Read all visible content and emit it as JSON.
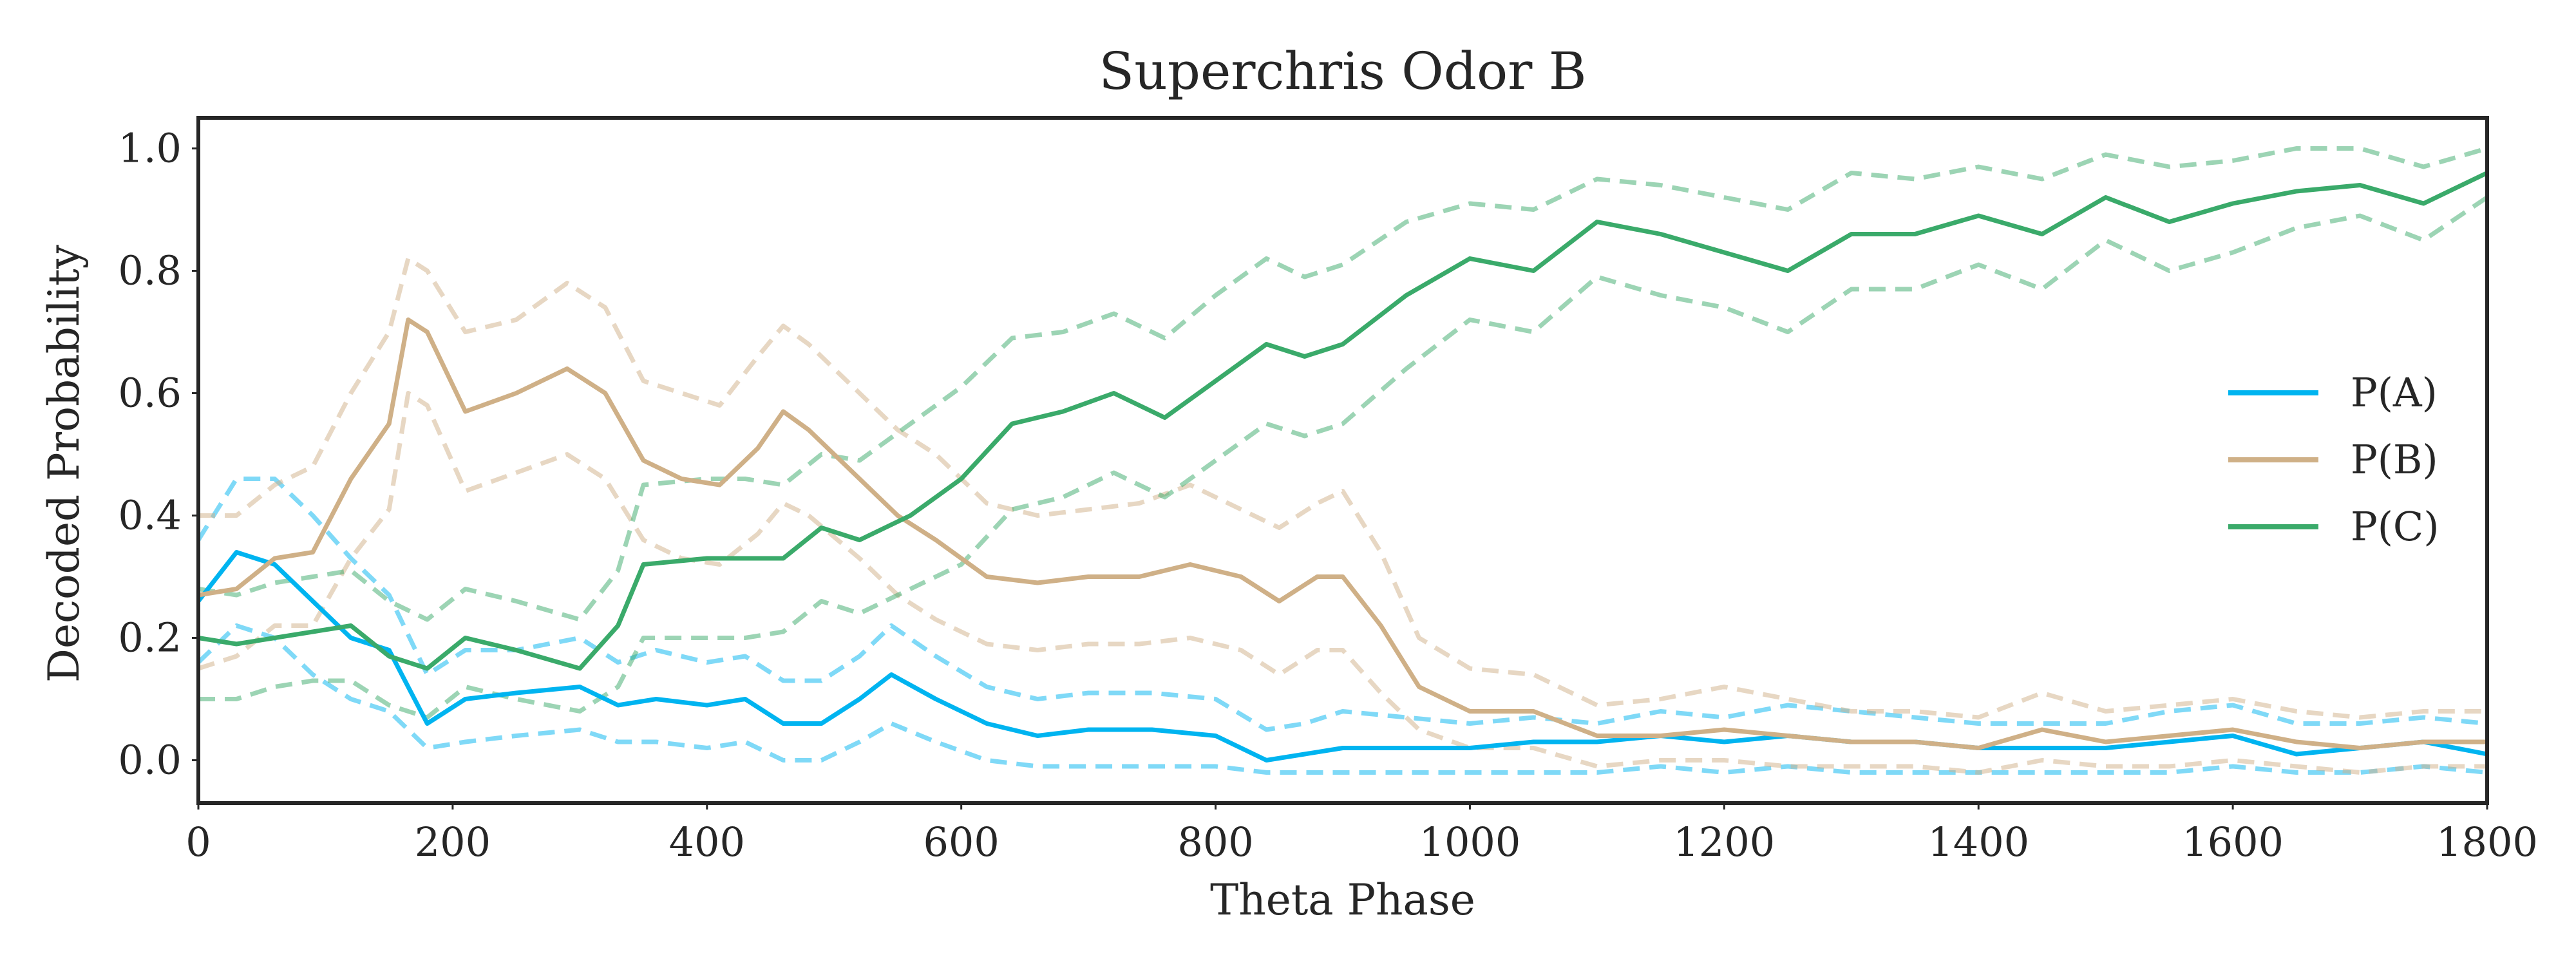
{
  "chart_data": {
    "type": "line",
    "title": "Superchris Odor B",
    "xlabel": "Theta Phase",
    "ylabel": "Decoded Probability",
    "xlim": [
      0,
      1800
    ],
    "ylim": [
      -0.07,
      1.05
    ],
    "xticks": [
      0,
      200,
      400,
      600,
      800,
      1000,
      1200,
      1400,
      1600,
      1800
    ],
    "yticks": [
      0.0,
      0.2,
      0.4,
      0.6,
      0.8,
      1.0
    ],
    "xtick_labels": [
      "0",
      "200",
      "400",
      "600",
      "800",
      "1000",
      "1200",
      "1400",
      "1600",
      "1800"
    ],
    "ytick_labels": [
      "0.0",
      "0.2",
      "0.4",
      "0.6",
      "0.8",
      "1.0"
    ],
    "grid": false,
    "legend_position": "center-right",
    "series": [
      {
        "name": "P(A)",
        "color": "#00b4f0",
        "x": [
          0,
          30,
          60,
          90,
          120,
          150,
          180,
          210,
          250,
          300,
          330,
          360,
          400,
          430,
          460,
          490,
          520,
          545,
          580,
          620,
          660,
          700,
          750,
          800,
          840,
          870,
          900,
          950,
          1000,
          1050,
          1100,
          1150,
          1200,
          1250,
          1300,
          1350,
          1400,
          1450,
          1500,
          1550,
          1600,
          1650,
          1700,
          1750,
          1800
        ],
        "values": [
          0.26,
          0.34,
          0.32,
          0.26,
          0.2,
          0.18,
          0.06,
          0.1,
          0.11,
          0.12,
          0.09,
          0.1,
          0.09,
          0.1,
          0.06,
          0.06,
          0.1,
          0.14,
          0.1,
          0.06,
          0.04,
          0.05,
          0.05,
          0.04,
          0.0,
          0.01,
          0.02,
          0.02,
          0.02,
          0.03,
          0.03,
          0.04,
          0.03,
          0.04,
          0.03,
          0.03,
          0.02,
          0.02,
          0.02,
          0.03,
          0.04,
          0.01,
          0.02,
          0.03,
          0.01
        ]
      },
      {
        "name": "P(B)",
        "color": "#cfb087",
        "x": [
          0,
          30,
          60,
          90,
          120,
          150,
          165,
          180,
          210,
          250,
          290,
          320,
          350,
          380,
          410,
          440,
          460,
          480,
          520,
          550,
          580,
          620,
          660,
          700,
          740,
          780,
          820,
          850,
          880,
          900,
          930,
          960,
          1000,
          1050,
          1100,
          1150,
          1200,
          1250,
          1300,
          1350,
          1400,
          1450,
          1500,
          1550,
          1600,
          1650,
          1700,
          1750,
          1800
        ],
        "values": [
          0.27,
          0.28,
          0.33,
          0.34,
          0.46,
          0.55,
          0.72,
          0.7,
          0.57,
          0.6,
          0.64,
          0.6,
          0.49,
          0.46,
          0.45,
          0.51,
          0.57,
          0.54,
          0.46,
          0.4,
          0.36,
          0.3,
          0.29,
          0.3,
          0.3,
          0.32,
          0.3,
          0.26,
          0.3,
          0.3,
          0.22,
          0.12,
          0.08,
          0.08,
          0.04,
          0.04,
          0.05,
          0.04,
          0.03,
          0.03,
          0.02,
          0.05,
          0.03,
          0.04,
          0.05,
          0.03,
          0.02,
          0.03,
          0.03
        ]
      },
      {
        "name": "P(C)",
        "color": "#3aaa6a",
        "x": [
          0,
          30,
          60,
          90,
          120,
          150,
          180,
          210,
          250,
          300,
          330,
          350,
          400,
          430,
          460,
          490,
          520,
          560,
          600,
          640,
          680,
          720,
          760,
          800,
          840,
          870,
          900,
          950,
          1000,
          1050,
          1100,
          1150,
          1200,
          1250,
          1300,
          1350,
          1400,
          1450,
          1500,
          1550,
          1600,
          1650,
          1700,
          1750,
          1800
        ],
        "values": [
          0.2,
          0.19,
          0.2,
          0.21,
          0.22,
          0.17,
          0.15,
          0.2,
          0.18,
          0.15,
          0.22,
          0.32,
          0.33,
          0.33,
          0.33,
          0.38,
          0.36,
          0.4,
          0.46,
          0.55,
          0.57,
          0.6,
          0.56,
          0.62,
          0.68,
          0.66,
          0.68,
          0.76,
          0.82,
          0.8,
          0.88,
          0.86,
          0.83,
          0.8,
          0.86,
          0.86,
          0.89,
          0.86,
          0.92,
          0.88,
          0.91,
          0.93,
          0.94,
          0.91,
          0.96
        ]
      }
    ],
    "dashed_bands": [
      {
        "series": "P(A)",
        "upper": [
          0.36,
          0.46,
          0.46,
          0.4,
          0.33,
          0.27,
          0.14,
          0.18,
          0.18,
          0.2,
          0.16,
          0.18,
          0.16,
          0.17,
          0.13,
          0.13,
          0.17,
          0.22,
          0.17,
          0.12,
          0.1,
          0.11,
          0.11,
          0.1,
          0.05,
          0.06,
          0.08,
          0.07,
          0.06,
          0.07,
          0.06,
          0.08,
          0.07,
          0.09,
          0.08,
          0.07,
          0.06,
          0.06,
          0.06,
          0.08,
          0.09,
          0.06,
          0.06,
          0.07,
          0.06
        ],
        "lower": [
          0.16,
          0.22,
          0.2,
          0.14,
          0.1,
          0.08,
          0.02,
          0.03,
          0.04,
          0.05,
          0.03,
          0.03,
          0.02,
          0.03,
          0.0,
          0.0,
          0.03,
          0.06,
          0.03,
          0.0,
          -0.01,
          -0.01,
          -0.01,
          -0.01,
          -0.02,
          -0.02,
          -0.02,
          -0.02,
          -0.02,
          -0.02,
          -0.02,
          -0.01,
          -0.02,
          -0.01,
          -0.02,
          -0.02,
          -0.02,
          -0.02,
          -0.02,
          -0.02,
          -0.01,
          -0.02,
          -0.02,
          -0.01,
          -0.02
        ]
      },
      {
        "series": "P(B)",
        "upper": [
          0.4,
          0.4,
          0.45,
          0.48,
          0.6,
          0.7,
          0.82,
          0.8,
          0.7,
          0.72,
          0.78,
          0.74,
          0.62,
          0.6,
          0.58,
          0.66,
          0.71,
          0.68,
          0.6,
          0.54,
          0.5,
          0.42,
          0.4,
          0.41,
          0.42,
          0.45,
          0.41,
          0.38,
          0.42,
          0.44,
          0.34,
          0.2,
          0.15,
          0.14,
          0.09,
          0.1,
          0.12,
          0.1,
          0.08,
          0.08,
          0.07,
          0.11,
          0.08,
          0.09,
          0.1,
          0.08,
          0.07,
          0.08,
          0.08
        ],
        "lower": [
          0.15,
          0.17,
          0.22,
          0.22,
          0.33,
          0.41,
          0.6,
          0.58,
          0.44,
          0.47,
          0.5,
          0.46,
          0.36,
          0.33,
          0.32,
          0.37,
          0.42,
          0.4,
          0.33,
          0.27,
          0.23,
          0.19,
          0.18,
          0.19,
          0.19,
          0.2,
          0.18,
          0.14,
          0.18,
          0.18,
          0.11,
          0.05,
          0.02,
          0.02,
          -0.01,
          0.0,
          0.0,
          -0.01,
          -0.01,
          -0.01,
          -0.02,
          0.0,
          -0.01,
          -0.01,
          0.0,
          -0.01,
          -0.02,
          -0.01,
          -0.01
        ]
      },
      {
        "series": "P(C)",
        "upper": [
          0.28,
          0.27,
          0.29,
          0.3,
          0.31,
          0.26,
          0.23,
          0.28,
          0.26,
          0.23,
          0.31,
          0.45,
          0.46,
          0.46,
          0.45,
          0.5,
          0.49,
          0.55,
          0.61,
          0.69,
          0.7,
          0.73,
          0.69,
          0.76,
          0.82,
          0.79,
          0.81,
          0.88,
          0.91,
          0.9,
          0.95,
          0.94,
          0.92,
          0.9,
          0.96,
          0.95,
          0.97,
          0.95,
          0.99,
          0.97,
          0.98,
          1.0,
          1.0,
          0.97,
          1.0
        ],
        "lower": [
          0.1,
          0.1,
          0.12,
          0.13,
          0.13,
          0.09,
          0.07,
          0.12,
          0.1,
          0.08,
          0.12,
          0.2,
          0.2,
          0.2,
          0.21,
          0.26,
          0.24,
          0.28,
          0.32,
          0.41,
          0.43,
          0.47,
          0.43,
          0.49,
          0.55,
          0.53,
          0.55,
          0.64,
          0.72,
          0.7,
          0.79,
          0.76,
          0.74,
          0.7,
          0.77,
          0.77,
          0.81,
          0.77,
          0.85,
          0.8,
          0.83,
          0.87,
          0.89,
          0.85,
          0.92
        ]
      }
    ]
  }
}
